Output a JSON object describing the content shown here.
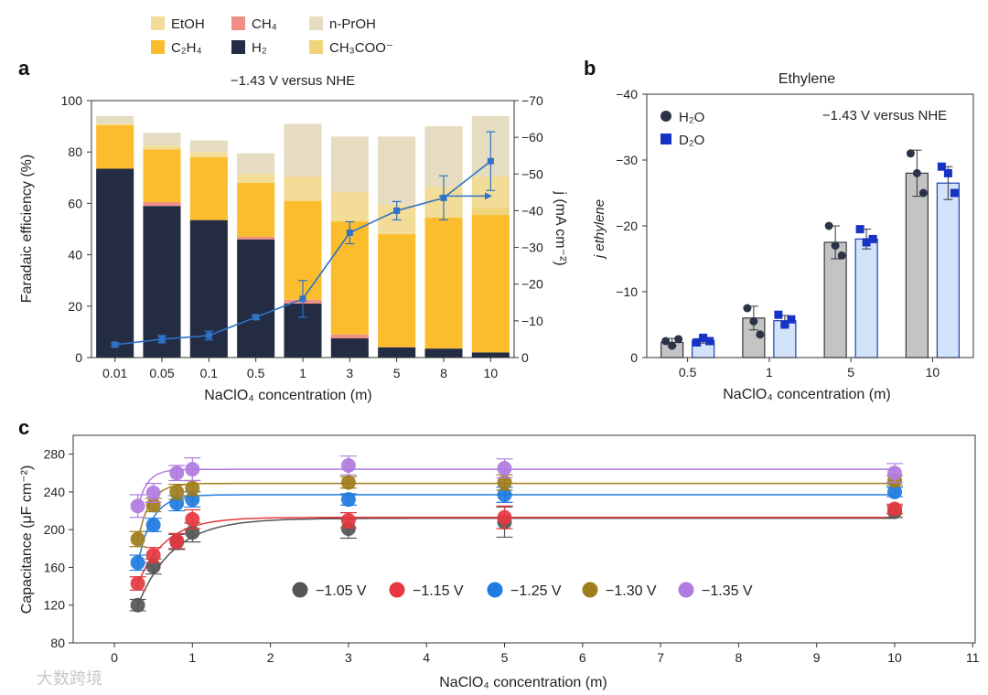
{
  "chart_data": [
    {
      "panel": "a",
      "type": "bar",
      "title": "−1.43 V versus NHE",
      "xlabel": "NaClO₄ concentration (m)",
      "ylabel": "Faradaic efficiency (%)",
      "ylabel_right": "j (mA cm⁻²)",
      "categories": [
        "0.01",
        "0.05",
        "0.1",
        "0.5",
        "1",
        "3",
        "5",
        "8",
        "10"
      ],
      "ylim": [
        0,
        100
      ],
      "yticks": [
        "0",
        "20",
        "40",
        "60",
        "80",
        "100"
      ],
      "ylim_right": [
        0,
        -70
      ],
      "yticks_right": [
        "0",
        "−10",
        "−20",
        "−30",
        "−40",
        "−50",
        "−60",
        "−70"
      ],
      "legend": [
        {
          "name": "EtOH",
          "color": "#f3dc97"
        },
        {
          "name": "CH₄",
          "color": "#f08f85"
        },
        {
          "name": "n-PrOH",
          "color": "#e6dcc2"
        },
        {
          "name": "C₂H₄",
          "color": "#fbbc2e"
        },
        {
          "name": "H₂",
          "color": "#232c43"
        },
        {
          "name": "CH₃COO⁻",
          "color": "#efd47c"
        }
      ],
      "series": [
        {
          "name": "H₂",
          "color": "#232c43",
          "values": [
            73.5,
            59,
            53.5,
            46,
            21,
            7.5,
            4,
            3.5,
            2
          ]
        },
        {
          "name": "CH₄",
          "color": "#f08f85",
          "values": [
            0,
            1.5,
            0,
            1,
            1.5,
            1.5,
            0,
            0,
            0
          ]
        },
        {
          "name": "C₂H₄",
          "color": "#fbbc2e",
          "values": [
            17,
            20.5,
            24.5,
            21,
            38.5,
            44,
            44,
            51,
            53.5
          ]
        },
        {
          "name": "CH₃COO⁻",
          "color": "#efd47c",
          "values": [
            0,
            0,
            0,
            0,
            0,
            0,
            0,
            0,
            3
          ]
        },
        {
          "name": "EtOH",
          "color": "#f3dc97",
          "values": [
            0.5,
            1.5,
            2,
            3.5,
            9.5,
            11.5,
            11.5,
            12,
            12
          ]
        },
        {
          "name": "n-PrOH",
          "color": "#e6dcc2",
          "values": [
            3,
            5,
            4.5,
            8,
            20.5,
            21.5,
            26.5,
            23.5,
            23.5
          ]
        }
      ],
      "current_density": {
        "values": [
          -3.5,
          -5,
          -6,
          -11,
          -16,
          -34,
          -40,
          -43.5,
          -53.5
        ],
        "errors": [
          0.5,
          1,
          1.2,
          0.5,
          5,
          3,
          2.5,
          6,
          8
        ],
        "color": "#2f73c7"
      }
    },
    {
      "panel": "b",
      "type": "bar",
      "title": "Ethylene",
      "annotation": "−1.43 V versus NHE",
      "xlabel": "NaClO₄ concentration (m)",
      "ylabel": "j ethylene",
      "categories": [
        "0.5",
        "1",
        "5",
        "10"
      ],
      "ylim": [
        0,
        -40
      ],
      "yticks": [
        "0",
        "−10",
        "−20",
        "−30",
        "−40"
      ],
      "legend_position": "top-left",
      "series": [
        {
          "name": "H₂O",
          "color": "#c4c4c4",
          "edge": "#3a3a3a",
          "marker_color": "#2b3447",
          "values": [
            -2.3,
            -6,
            -17.5,
            -28
          ],
          "errors": [
            0.6,
            1.8,
            2.5,
            3.5
          ],
          "points": [
            [
              -2.5,
              -1.8,
              -2.8
            ],
            [
              -7.5,
              -5.5,
              -3.5
            ],
            [
              -20,
              -17,
              -15.5
            ],
            [
              -31,
              -28,
              -25
            ]
          ]
        },
        {
          "name": "D₂O",
          "color": "#d3e4fa",
          "edge": "#1c3fb5",
          "marker_color": "#1533c4",
          "values": [
            -2.6,
            -5.6,
            -18,
            -26.5
          ],
          "errors": [
            0.4,
            0.8,
            1.5,
            2.5
          ],
          "points": [
            [
              -2.3,
              -3,
              -2.5
            ],
            [
              -6.5,
              -5,
              -5.8
            ],
            [
              -19.5,
              -17.5,
              -18
            ],
            [
              -29,
              -28,
              -25
            ]
          ]
        }
      ]
    },
    {
      "panel": "c",
      "type": "scatter",
      "xlabel": "NaClO₄ concentration (m)",
      "ylabel": "Capacitance (μF cm⁻²)",
      "xlim": [
        0,
        11
      ],
      "ylim": [
        80,
        300
      ],
      "xticks": [
        "0",
        "1",
        "2",
        "3",
        "4",
        "5",
        "6",
        "7",
        "8",
        "9",
        "10",
        "11"
      ],
      "yticks": [
        "80",
        "120",
        "160",
        "200",
        "240",
        "280"
      ],
      "x": [
        0.3,
        0.5,
        0.8,
        1,
        3,
        5,
        10
      ],
      "series": [
        {
          "name": "−1.05 V",
          "color": "#555555",
          "plateau": 212,
          "rate": 2.2,
          "values": [
            120,
            161,
            187,
            197,
            201,
            208,
            219
          ],
          "errors": [
            6,
            8,
            8,
            10,
            10,
            16,
            6
          ]
        },
        {
          "name": "−1.15 V",
          "color": "#e5383f",
          "plateau": 213,
          "rate": 2.8,
          "values": [
            143,
            173,
            188,
            211,
            210,
            213,
            222
          ],
          "errors": [
            7,
            8,
            8,
            10,
            8,
            12,
            5
          ]
        },
        {
          "name": "−1.25 V",
          "color": "#1f7be0",
          "plateau": 237,
          "rate": 5.5,
          "values": [
            165,
            205,
            228,
            232,
            232,
            237,
            240
          ],
          "errors": [
            8,
            7,
            8,
            8,
            6,
            8,
            5
          ]
        },
        {
          "name": "−1.30 V",
          "color": "#a07d1c",
          "plateau": 249,
          "rate": 6.5,
          "values": [
            190,
            226,
            240,
            244,
            250,
            250,
            252
          ],
          "errors": [
            8,
            7,
            8,
            8,
            6,
            8,
            5
          ]
        },
        {
          "name": "−1.35 V",
          "color": "#b07be0",
          "plateau": 264,
          "rate": 8,
          "values": [
            225,
            239,
            260,
            264,
            268,
            265,
            260
          ],
          "errors": [
            12,
            10,
            8,
            12,
            10,
            10,
            10
          ]
        }
      ]
    }
  ],
  "watermark": "大数跨境"
}
